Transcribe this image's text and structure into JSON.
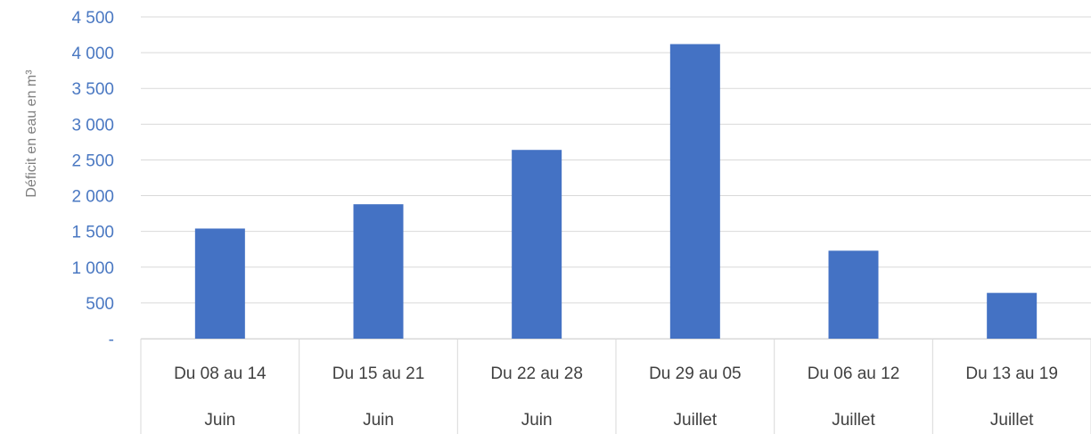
{
  "chart_data": {
    "type": "bar",
    "categories": [
      "Du 08 au 14",
      "Du 15 au 21",
      "Du 22 au 28",
      "Du 29 au 05",
      "Du 06 au 12",
      "Du 13 au 19"
    ],
    "months": [
      "Juin",
      "Juin",
      "Juin",
      "Juillet",
      "Juillet",
      "Juillet"
    ],
    "values": [
      1540,
      1880,
      2640,
      4120,
      1230,
      640
    ],
    "ylabel": "Déficit en eau en m³",
    "ylim": [
      0,
      4500
    ],
    "yticks": [
      0,
      500,
      1000,
      1500,
      2000,
      2500,
      3000,
      3500,
      4000,
      4500
    ],
    "ytick_labels": [
      "-",
      "500",
      "1 000",
      "1 500",
      "2 000",
      "2 500",
      "3 000",
      "3 500",
      "4 000",
      "4 500"
    ],
    "grid": true,
    "colors": {
      "bar": "#4472c4",
      "grid": "#d9d9d9",
      "tick_text": "#4a78c2",
      "axis_label": "#7f7f7f",
      "category_text": "#404040"
    }
  }
}
